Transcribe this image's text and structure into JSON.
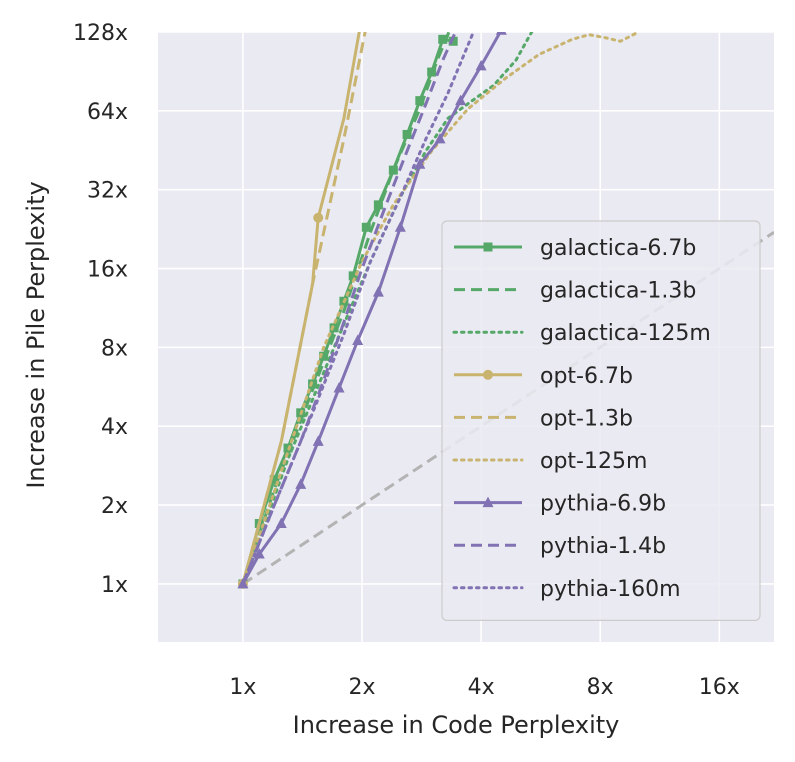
{
  "chart_data": {
    "type": "line",
    "title": "",
    "xlabel": "Increase in Code Perplexity",
    "ylabel": "Increase in Pile Perplexity",
    "xscale": "log2",
    "yscale": "log2",
    "xlim": [
      0.61,
      22.0
    ],
    "ylim": [
      0.6,
      128
    ],
    "x_ticks": [
      {
        "value": 1,
        "label": "1x"
      },
      {
        "value": 2,
        "label": "2x"
      },
      {
        "value": 4,
        "label": "4x"
      },
      {
        "value": 8,
        "label": "8x"
      },
      {
        "value": 16,
        "label": "16x"
      }
    ],
    "y_ticks": [
      {
        "value": 1,
        "label": "1x"
      },
      {
        "value": 2,
        "label": "2x"
      },
      {
        "value": 4,
        "label": "4x"
      },
      {
        "value": 8,
        "label": "8x"
      },
      {
        "value": 16,
        "label": "16x"
      },
      {
        "value": 32,
        "label": "32x"
      },
      {
        "value": 64,
        "label": "64x"
      },
      {
        "value": 128,
        "label": "128x"
      }
    ],
    "grid": true,
    "legend_position": "center-right",
    "reference_line": {
      "name": "y=x",
      "color": "#b3b3b3",
      "style": "dashed",
      "x": [
        1,
        22
      ],
      "y": [
        1,
        22
      ]
    },
    "series": [
      {
        "name": "galactica-6.7b",
        "color": "#55a868",
        "style": "solid",
        "marker": "square",
        "x": [
          1.0,
          1.1,
          1.2,
          1.3,
          1.4,
          1.5,
          1.6,
          1.7,
          1.8,
          1.9,
          2.05,
          2.2,
          2.4,
          2.6,
          2.8,
          3.0,
          3.2,
          3.4
        ],
        "y": [
          1.0,
          1.7,
          2.5,
          3.3,
          4.5,
          5.8,
          7.4,
          9.5,
          12,
          15,
          23,
          28,
          38,
          52,
          70,
          90,
          120,
          118
        ]
      },
      {
        "name": "galactica-1.3b",
        "color": "#55a868",
        "style": "dashed",
        "marker": "none",
        "x": [
          1.0,
          1.2,
          1.5,
          1.8,
          2.1,
          2.4,
          2.8,
          3.1,
          3.4
        ],
        "y": [
          1.0,
          2.3,
          5.5,
          11,
          22,
          38,
          65,
          100,
          140
        ]
      },
      {
        "name": "galactica-125m",
        "color": "#55a868",
        "style": "dotted",
        "marker": "none",
        "x": [
          1.0,
          1.3,
          1.7,
          2.1,
          2.5,
          2.9,
          3.3,
          3.8,
          4.3,
          4.9,
          5.4
        ],
        "y": [
          1.0,
          3.0,
          8.0,
          17,
          30,
          45,
          60,
          70,
          80,
          100,
          130
        ]
      },
      {
        "name": "opt-6.7b",
        "color": "#c9b46f",
        "style": "solid",
        "marker": "circle",
        "x": [
          1.0,
          1.25,
          1.5,
          1.55,
          1.8,
          1.98
        ],
        "y": [
          1.0,
          3.5,
          14.0,
          25.0,
          60.0,
          135.0
        ],
        "marker_points": [
          0,
          3
        ]
      },
      {
        "name": "opt-1.3b",
        "color": "#c9b46f",
        "style": "dashed",
        "marker": "none",
        "x": [
          1.0,
          1.25,
          1.5,
          1.8,
          2.05
        ],
        "y": [
          1.0,
          3.5,
          14,
          50,
          135
        ]
      },
      {
        "name": "opt-125m",
        "color": "#c9b46f",
        "style": "dotted",
        "marker": "none",
        "x": [
          1.0,
          1.3,
          1.6,
          2.0,
          2.4,
          3.0,
          3.7,
          4.6,
          5.6,
          6.8,
          7.5,
          8.2,
          9.0,
          10.0
        ],
        "y": [
          1.0,
          3.2,
          8.0,
          17,
          28,
          45,
          65,
          85,
          105,
          120,
          125,
          122,
          118,
          128
        ]
      },
      {
        "name": "pythia-6.9b",
        "color": "#8172b3",
        "style": "solid",
        "marker": "triangle",
        "x": [
          1.0,
          1.1,
          1.25,
          1.4,
          1.55,
          1.75,
          1.95,
          2.2,
          2.5,
          2.8,
          3.15,
          3.55,
          4.0,
          4.5
        ],
        "y": [
          1.0,
          1.3,
          1.7,
          2.4,
          3.5,
          5.6,
          8.5,
          13,
          23,
          40,
          50,
          70,
          95,
          130
        ]
      },
      {
        "name": "pythia-1.4b",
        "color": "#8172b3",
        "style": "dashed",
        "marker": "none",
        "x": [
          1.0,
          1.2,
          1.4,
          1.6,
          1.8,
          2.0,
          2.3,
          2.6,
          2.9,
          3.2,
          3.5
        ],
        "y": [
          1.0,
          2.0,
          3.5,
          6.0,
          10,
          16,
          28,
          45,
          68,
          100,
          135
        ]
      },
      {
        "name": "pythia-160m",
        "color": "#8172b3",
        "style": "dotted",
        "marker": "none",
        "x": [
          1.0,
          1.2,
          1.5,
          1.8,
          2.1,
          2.5,
          2.9,
          3.3,
          3.8
        ],
        "y": [
          1.0,
          2.0,
          4.5,
          9.0,
          17,
          30,
          50,
          75,
          125
        ]
      }
    ]
  }
}
